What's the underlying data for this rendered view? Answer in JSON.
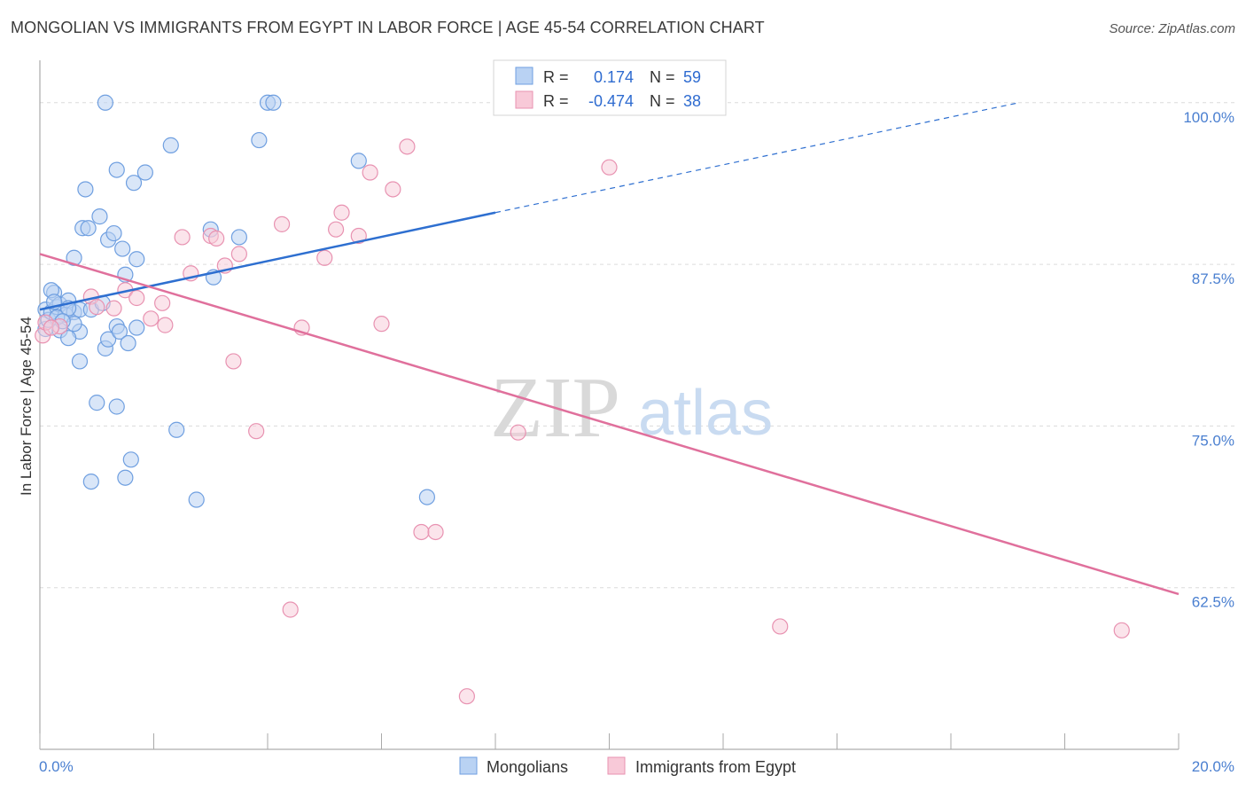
{
  "title": "MONGOLIAN VS IMMIGRANTS FROM EGYPT IN LABOR FORCE | AGE 45-54 CORRELATION CHART",
  "source": "Source: ZipAtlas.com",
  "watermark": {
    "zip": "ZIP",
    "atlas": "atlas"
  },
  "colors": {
    "blue_fill": "#b9d2f3",
    "blue_stroke": "#6f9fe0",
    "blue_line": "#2e6fd0",
    "pink_fill": "#f8c9d8",
    "pink_stroke": "#e892b1",
    "pink_line": "#e0709c",
    "tick_text": "#4a7fd0",
    "grid": "#dcdcdc"
  },
  "stats": {
    "r_label": "R =",
    "n_label": "N =",
    "rows": [
      {
        "r": "0.174",
        "n": "59"
      },
      {
        "r": "-0.474",
        "n": "38"
      }
    ]
  },
  "chart_data": {
    "type": "scatter",
    "title": "MONGOLIAN VS IMMIGRANTS FROM EGYPT IN LABOR FORCE | AGE 45-54 CORRELATION CHART",
    "xlabel": "",
    "ylabel": "In Labor Force | Age 45-54",
    "xlim": [
      0,
      20
    ],
    "ylim": [
      50,
      103
    ],
    "x_tick_labels": [
      "0.0%",
      "20.0%"
    ],
    "y_ticks": [
      62.5,
      75.0,
      87.5,
      100.0
    ],
    "y_tick_labels": [
      "62.5%",
      "75.0%",
      "87.5%",
      "100.0%"
    ],
    "legend": [
      "Mongolians",
      "Immigrants from Egypt"
    ],
    "series": [
      {
        "name": "Mongolians",
        "r": 0.174,
        "n": 59,
        "trend": {
          "x0": 0,
          "y0": 84.0,
          "x1": 8.0,
          "y1": 91.5,
          "dash_x1": 17.2,
          "dash_y1": 100.0
        },
        "points": [
          [
            0.1,
            82.5
          ],
          [
            0.1,
            84.0
          ],
          [
            0.15,
            83.2
          ],
          [
            0.2,
            83.8
          ],
          [
            0.25,
            85.3
          ],
          [
            0.3,
            84.2
          ],
          [
            0.35,
            82.4
          ],
          [
            0.35,
            84.4
          ],
          [
            0.45,
            83.6
          ],
          [
            0.5,
            84.7
          ],
          [
            0.6,
            83.8
          ],
          [
            0.7,
            84.0
          ],
          [
            0.7,
            82.3
          ],
          [
            0.5,
            81.8
          ],
          [
            0.6,
            88.0
          ],
          [
            0.7,
            80.0
          ],
          [
            0.75,
            90.3
          ],
          [
            0.8,
            93.3
          ],
          [
            0.85,
            90.3
          ],
          [
            0.9,
            70.7
          ],
          [
            0.9,
            84.0
          ],
          [
            1.0,
            76.8
          ],
          [
            1.05,
            91.2
          ],
          [
            1.1,
            84.5
          ],
          [
            1.15,
            81.0
          ],
          [
            1.2,
            81.7
          ],
          [
            1.2,
            89.4
          ],
          [
            1.3,
            89.9
          ],
          [
            1.35,
            94.8
          ],
          [
            1.35,
            82.7
          ],
          [
            1.35,
            76.5
          ],
          [
            1.4,
            82.3
          ],
          [
            1.45,
            88.7
          ],
          [
            1.5,
            71.0
          ],
          [
            1.5,
            86.7
          ],
          [
            1.55,
            81.4
          ],
          [
            1.6,
            72.4
          ],
          [
            1.65,
            93.8
          ],
          [
            1.7,
            87.9
          ],
          [
            1.7,
            82.6
          ],
          [
            1.85,
            94.6
          ],
          [
            2.3,
            96.7
          ],
          [
            2.4,
            74.7
          ],
          [
            2.75,
            69.3
          ],
          [
            3.0,
            90.2
          ],
          [
            3.05,
            86.5
          ],
          [
            3.5,
            89.6
          ],
          [
            3.85,
            97.1
          ],
          [
            4.0,
            100.0
          ],
          [
            4.1,
            100.0
          ],
          [
            5.6,
            95.5
          ],
          [
            6.8,
            69.5
          ],
          [
            1.15,
            100.0
          ],
          [
            0.2,
            85.5
          ],
          [
            0.3,
            83.4
          ],
          [
            0.5,
            84.1
          ],
          [
            0.6,
            82.9
          ],
          [
            0.4,
            83.1
          ],
          [
            0.25,
            84.6
          ]
        ]
      },
      {
        "name": "Immigrants from Egypt",
        "r": -0.474,
        "n": 38,
        "trend": {
          "x0": 0,
          "y0": 88.3,
          "x1": 20,
          "y1": 62.0
        },
        "points": [
          [
            0.05,
            82.0
          ],
          [
            0.1,
            83.0
          ],
          [
            0.35,
            82.7
          ],
          [
            0.9,
            85.0
          ],
          [
            1.0,
            84.2
          ],
          [
            1.3,
            84.1
          ],
          [
            1.5,
            85.5
          ],
          [
            1.7,
            84.9
          ],
          [
            1.95,
            83.3
          ],
          [
            2.15,
            84.5
          ],
          [
            2.2,
            82.8
          ],
          [
            2.5,
            89.6
          ],
          [
            2.65,
            86.8
          ],
          [
            3.0,
            89.7
          ],
          [
            3.1,
            89.5
          ],
          [
            3.25,
            87.4
          ],
          [
            3.4,
            80.0
          ],
          [
            3.5,
            88.3
          ],
          [
            3.8,
            74.6
          ],
          [
            4.25,
            90.6
          ],
          [
            4.4,
            60.8
          ],
          [
            4.6,
            82.6
          ],
          [
            5.0,
            88.0
          ],
          [
            5.2,
            90.2
          ],
          [
            5.3,
            91.5
          ],
          [
            5.6,
            89.7
          ],
          [
            5.8,
            94.6
          ],
          [
            6.0,
            82.9
          ],
          [
            6.2,
            93.3
          ],
          [
            6.45,
            96.6
          ],
          [
            6.7,
            66.8
          ],
          [
            6.95,
            66.8
          ],
          [
            7.5,
            54.1
          ],
          [
            8.4,
            74.5
          ],
          [
            10.0,
            95.0
          ],
          [
            13.0,
            59.5
          ],
          [
            19.0,
            59.2
          ],
          [
            0.2,
            82.6
          ]
        ]
      }
    ]
  }
}
